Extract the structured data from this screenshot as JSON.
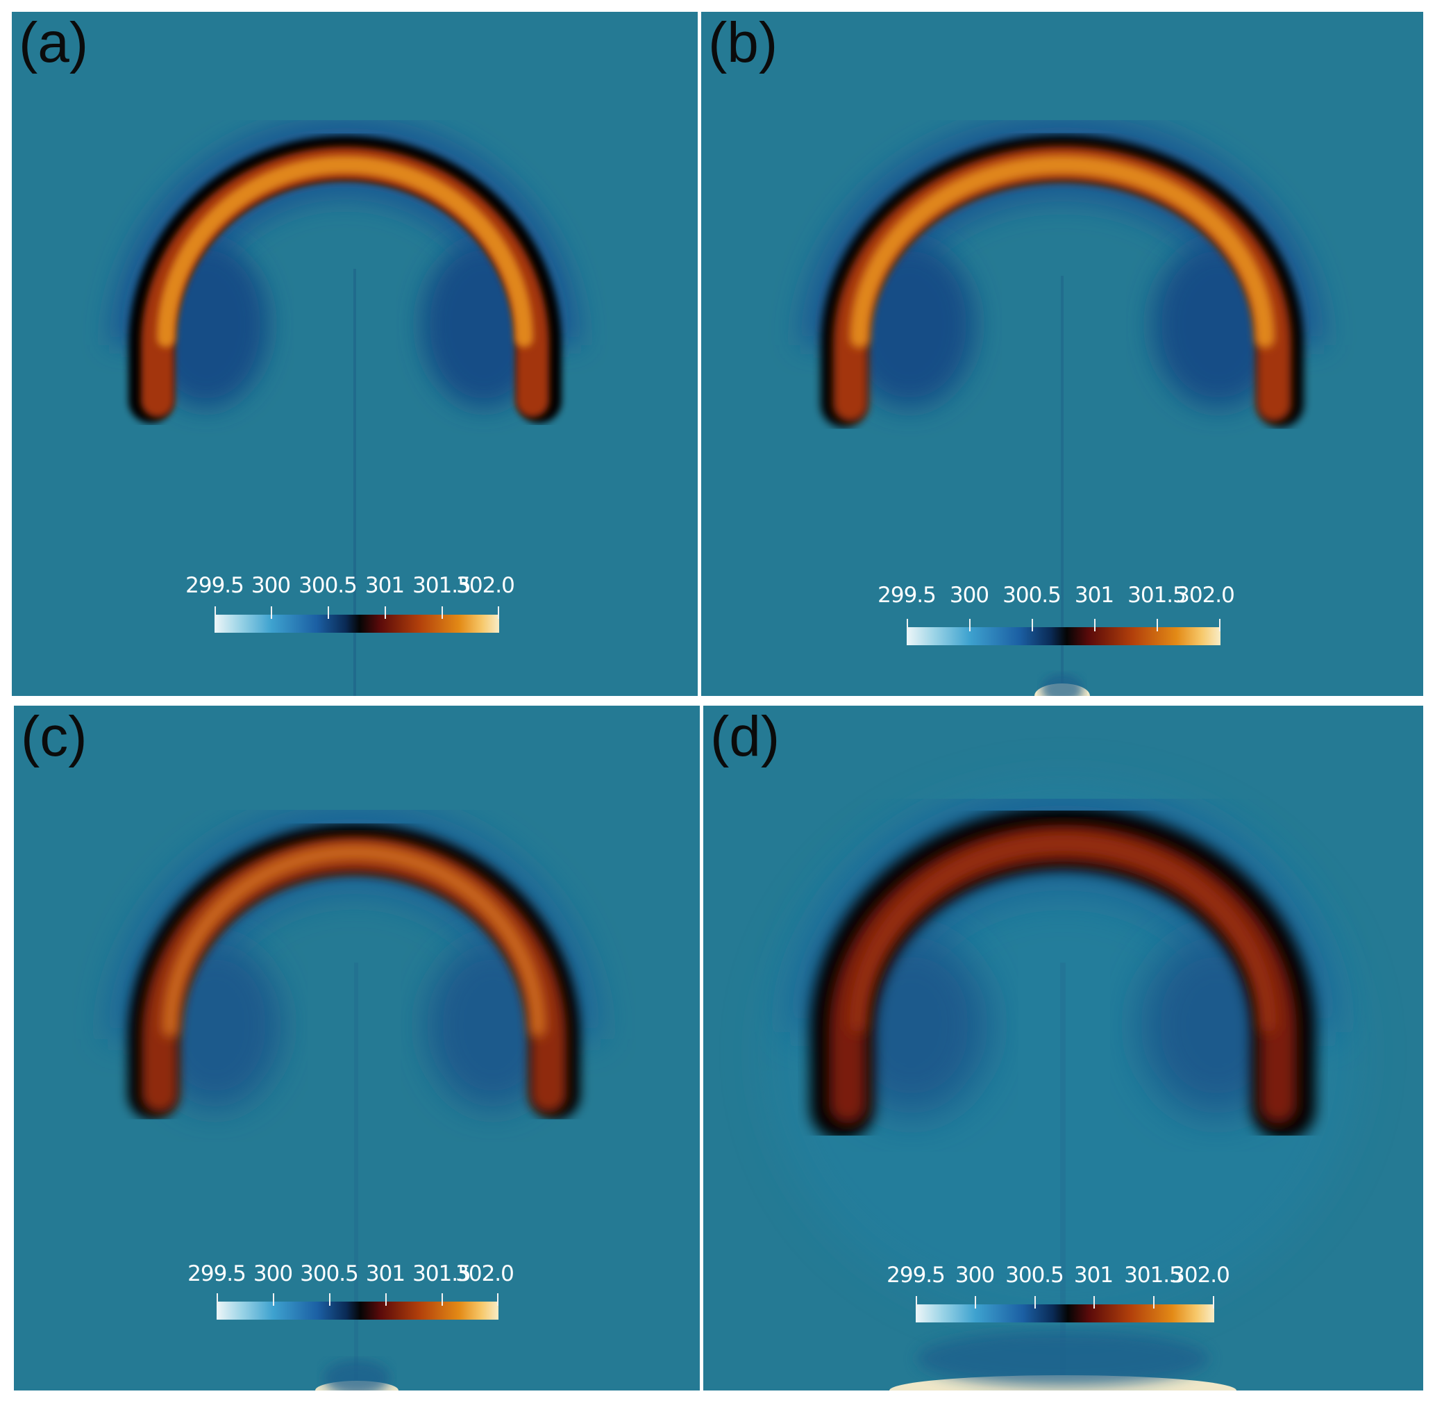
{
  "panels": [
    {
      "label": "(a)",
      "colorbar_ticks": [
        "299.5",
        "300",
        "300.5",
        "301",
        "301.5",
        "302.0"
      ]
    },
    {
      "label": "(b)",
      "colorbar_ticks": [
        "299.5",
        "300",
        "300.5",
        "301",
        "301.5",
        "302.0"
      ]
    },
    {
      "label": "(c)",
      "colorbar_ticks": [
        "299.5",
        "300",
        "300.5",
        "301",
        "301.5",
        "302.0"
      ]
    },
    {
      "label": "(d)",
      "colorbar_ticks": [
        "299.5",
        "300",
        "300.5",
        "301",
        "301.5",
        "302.0"
      ]
    }
  ],
  "colors": {
    "background": "#257a94",
    "hot": "#e0861a",
    "warm": "#a3340f",
    "dark": "#060606",
    "cool": "#1a5c93",
    "pale": "#f1ecd0"
  },
  "colorbar_range": [
    299.5,
    302.0
  ]
}
